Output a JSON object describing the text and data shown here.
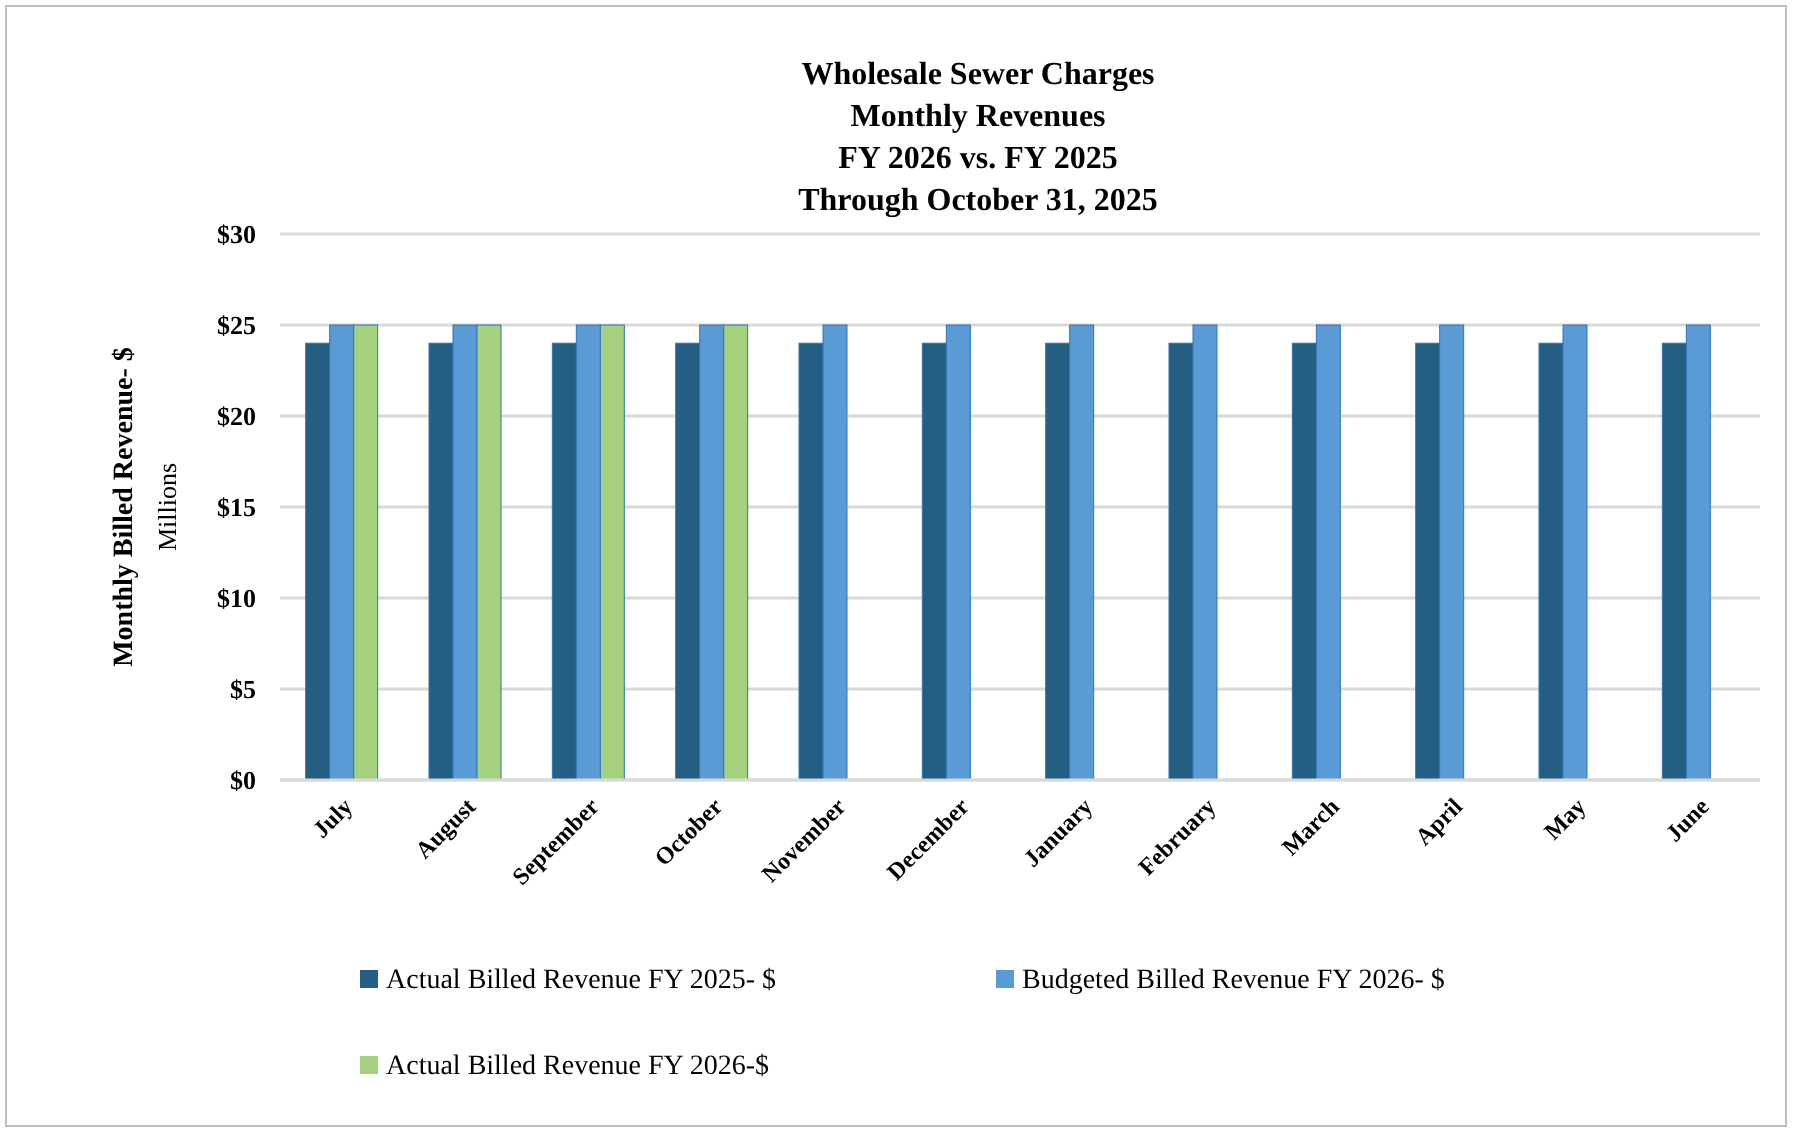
{
  "chart_data": {
    "type": "bar",
    "title": "Wholesale Sewer Charges\nMonthly Revenues\nFY 2026 vs. FY 2025\nThrough October 31, 2025",
    "ylabel": "Monthly Billed Revenue- $\nMillions",
    "categories": [
      "July",
      "August",
      "September",
      "October",
      "November",
      "December",
      "January",
      "February",
      "March",
      "April",
      "May",
      "June"
    ],
    "series": [
      {
        "name": "Actual Billed Revenue FY 2025- $",
        "color": "#245e82",
        "values": [
          24,
          24,
          24,
          24,
          24,
          24,
          24,
          24,
          24,
          24,
          24,
          24
        ]
      },
      {
        "name": "Budgeted Billed Revenue FY 2026- $",
        "color": "#5b9bd5",
        "values": [
          25,
          25,
          25,
          25,
          25,
          25,
          25,
          25,
          25,
          25,
          25,
          25
        ]
      },
      {
        "name": "Actual Billed Revenue FY 2026-$",
        "color": "#a5d17f",
        "values": [
          25,
          25,
          25,
          25,
          null,
          null,
          null,
          null,
          null,
          null,
          null,
          null
        ]
      }
    ],
    "ylim": [
      0,
      30
    ],
    "yticks": [
      {
        "value": 0,
        "label": "$0"
      },
      {
        "value": 5,
        "label": "$5"
      },
      {
        "value": 10,
        "label": "$10"
      },
      {
        "value": 15,
        "label": "$15"
      },
      {
        "value": 20,
        "label": "$20"
      },
      {
        "value": 25,
        "label": "$25"
      },
      {
        "value": 30,
        "label": "$30"
      }
    ],
    "grid": "y",
    "legend": "bottom"
  }
}
